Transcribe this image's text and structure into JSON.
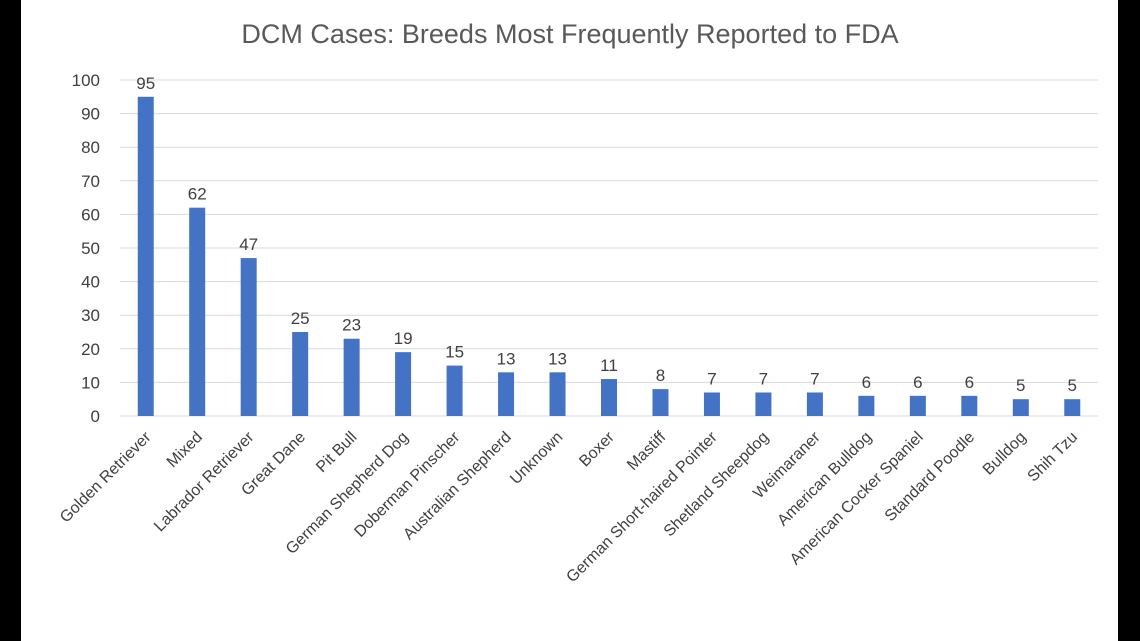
{
  "chart_data": {
    "type": "bar",
    "title": "DCM Cases: Breeds Most Frequently Reported to FDA",
    "xlabel": "",
    "ylabel": "",
    "ylim": [
      0,
      100
    ],
    "yticks": [
      0,
      10,
      20,
      30,
      40,
      50,
      60,
      70,
      80,
      90,
      100
    ],
    "grid": true,
    "legend": "none",
    "bar_color": "#4472c4",
    "categories": [
      "Golden Retriever",
      "Mixed",
      "Labrador Retriever",
      "Great Dane",
      "Pit Bull",
      "German Shepherd Dog",
      "Doberman Pinscher",
      "Australian Shepherd",
      "Unknown",
      "Boxer",
      "Mastiff",
      "German Short-haired Pointer",
      "Shetland Sheepdog",
      "Weimaraner",
      "American Bulldog",
      "American Cocker Spaniel",
      "Standard Poodle",
      "Bulldog",
      "Shih Tzu"
    ],
    "values": [
      95,
      62,
      47,
      25,
      23,
      19,
      15,
      13,
      13,
      11,
      8,
      7,
      7,
      7,
      6,
      6,
      6,
      5,
      5
    ]
  }
}
